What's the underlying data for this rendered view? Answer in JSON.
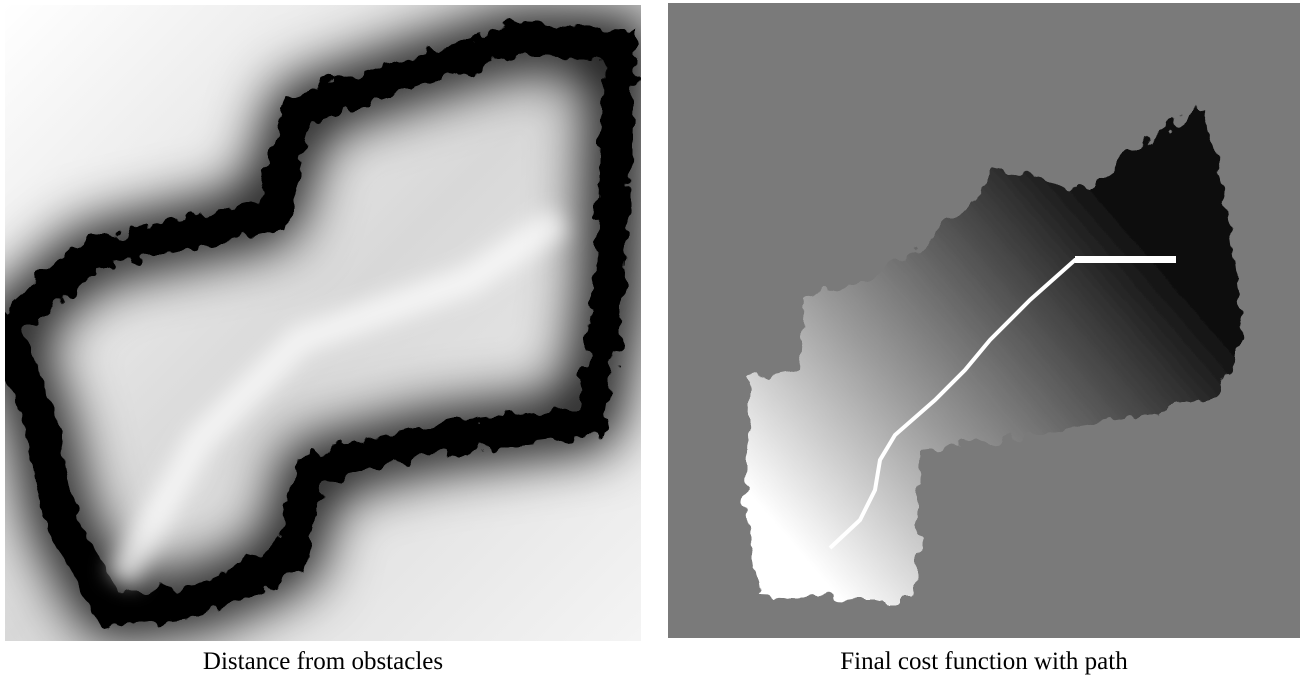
{
  "figure": {
    "panels": [
      {
        "caption": "Distance from obstacles"
      },
      {
        "caption": "Final cost function with path"
      }
    ]
  }
}
